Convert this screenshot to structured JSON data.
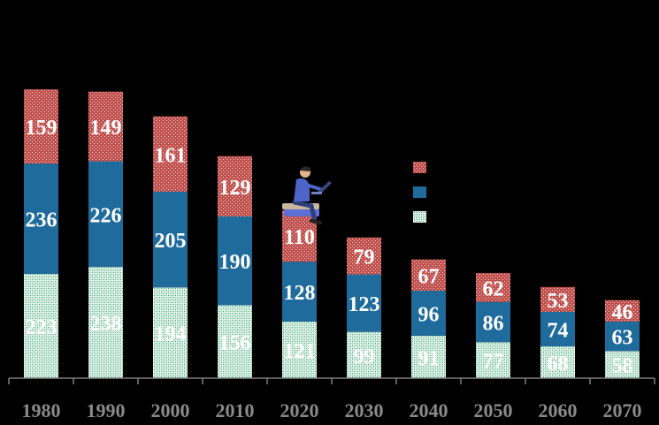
{
  "colors": {
    "top": "#c0504d",
    "middle": "#1f6b9b",
    "bottom": "#7fcaa8",
    "axis": "#7f7f7f",
    "label": "#ffffff",
    "tick": "#8a8a8a"
  },
  "legend": {
    "position": "top-center",
    "entries": [
      "",
      "",
      ""
    ]
  },
  "illustration": "person-sitting-on-books-with-laptop-icon",
  "chart_data": {
    "type": "bar",
    "stacked": true,
    "categories": [
      "1980",
      "1990",
      "2000",
      "2010",
      "2020",
      "2030",
      "2040",
      "2050",
      "2060",
      "2070"
    ],
    "series": [
      {
        "values": [
          223,
          238,
          194,
          156,
          121,
          99,
          91,
          77,
          68,
          58
        ]
      },
      {
        "values": [
          236,
          226,
          205,
          190,
          128,
          123,
          96,
          86,
          74,
          63
        ]
      },
      {
        "values": [
          159,
          149,
          161,
          129,
          110,
          79,
          67,
          62,
          53,
          46
        ]
      }
    ],
    "ylim": [
      0,
      620
    ],
    "grid": false
  }
}
